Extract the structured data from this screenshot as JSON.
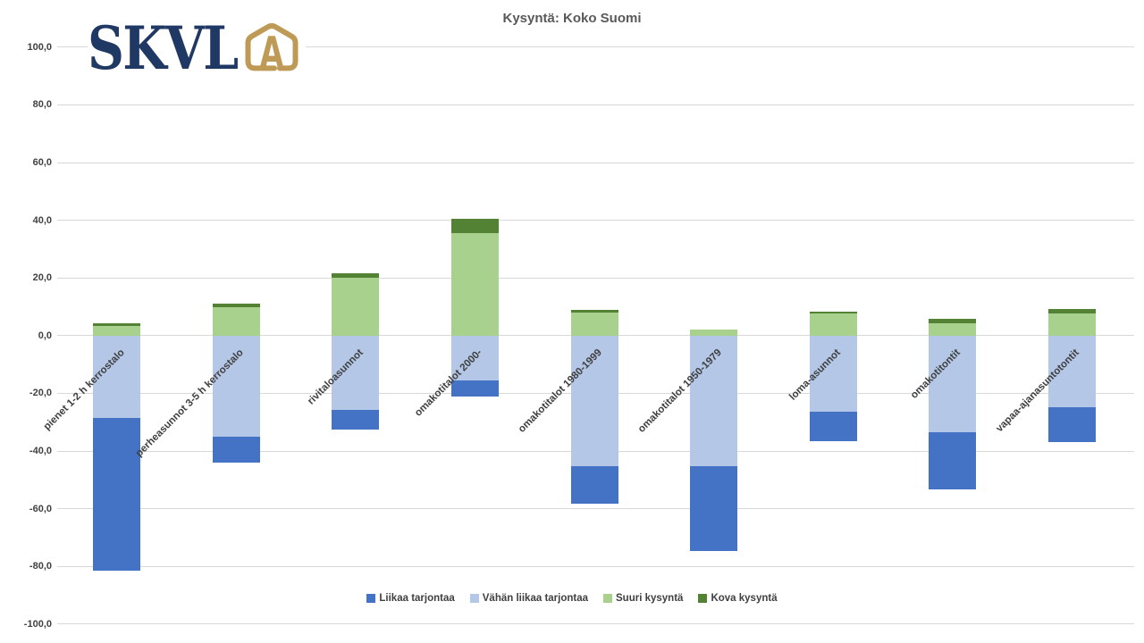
{
  "logo": {
    "text": "SKVL",
    "icon": "house-a-icon",
    "navy": "#1F3864",
    "gold": "#BF9A56"
  },
  "title": "Kysyntä: Koko Suomi",
  "chart_data": {
    "type": "bar",
    "stacked": true,
    "title": "Kysyntä: Koko Suomi",
    "categories": [
      "pienet 1-2 h kerrostalo",
      "perheasunnot 3-5 h kerrostalo",
      "rivitaloasunnot",
      "omakotitalot 2000-",
      "omakotitalot 1980-1999",
      "omakotitalot 1950-1979",
      "loma-asunnot",
      "omakotitontit",
      "vapaa-ajanasuntotontit"
    ],
    "series": [
      {
        "name": "Liikaa tarjontaa",
        "color": "#4472C4",
        "values": [
          -52.9,
          -8.8,
          -6.7,
          -5.6,
          -13.2,
          -29.5,
          -10.4,
          -19.8,
          -12.1
        ]
      },
      {
        "name": "Vähän liikaa tarjontaa",
        "color": "#B4C7E7",
        "values": [
          -28.6,
          -35.1,
          -25.9,
          -15.4,
          -45.2,
          -45.3,
          -26.3,
          -33.6,
          -24.7
        ]
      },
      {
        "name": "Suuri kysyntä",
        "color": "#A9D18E",
        "values": [
          3.2,
          9.8,
          20.1,
          35.5,
          8.0,
          2.0,
          7.7,
          4.3,
          7.8
        ]
      },
      {
        "name": "Kova kysyntä",
        "color": "#548235",
        "values": [
          1.0,
          1.2,
          1.6,
          5.0,
          0.9,
          0.0,
          0.6,
          1.5,
          1.5
        ]
      }
    ],
    "plot_order_negative": [
      1,
      0
    ],
    "plot_order_positive": [
      2,
      3
    ],
    "ylim": [
      -100,
      100
    ],
    "ytick_step": 20,
    "ytick_labels": [
      "100,0",
      "80,0",
      "60,0",
      "40,0",
      "20,0",
      "0,0",
      "-20,0",
      "-40,0",
      "-60,0",
      "-80,0",
      "-100,0"
    ],
    "grid": true,
    "legend_position": "bottom"
  }
}
